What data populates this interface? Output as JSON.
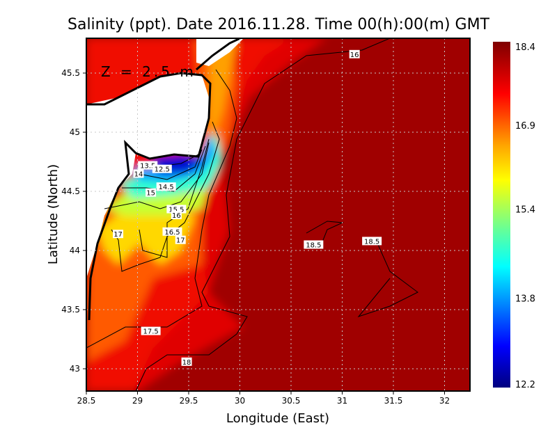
{
  "chart_data": {
    "type": "heatmap",
    "title": "Salinity (ppt). Date 2016.11.28. Time 00(h):00(m) GMT",
    "annotation": "Z = 2.5 m",
    "xlabel": "Longitude (East)",
    "ylabel": "Latitude (North)",
    "xlim": [
      28.5,
      32.25
    ],
    "ylim": [
      42.8,
      45.8
    ],
    "xticks": [
      "28.5",
      "29",
      "29.5",
      "30",
      "30.5",
      "31",
      "31.5",
      "32"
    ],
    "yticks": [
      "43",
      "43.5",
      "44",
      "44.5",
      "45",
      "45.5"
    ],
    "grid": true,
    "colorbar": {
      "min": 12.2,
      "max": 18.4,
      "ticks": [
        "12.2",
        "13.8",
        "15.4",
        "16.9",
        "18.4"
      ],
      "colormap": "jet",
      "placement": "right"
    },
    "contour_labels": [
      {
        "text": "16",
        "lon": 31.12,
        "lat": 45.66
      },
      {
        "text": "13.5",
        "lon": 29.1,
        "lat": 44.72
      },
      {
        "text": "12.5",
        "lon": 29.24,
        "lat": 44.69
      },
      {
        "text": "14",
        "lon": 29.01,
        "lat": 44.65
      },
      {
        "text": "14.5",
        "lon": 29.28,
        "lat": 44.54
      },
      {
        "text": "15",
        "lon": 29.13,
        "lat": 44.49
      },
      {
        "text": "15.5",
        "lon": 29.38,
        "lat": 44.35
      },
      {
        "text": "16",
        "lon": 29.38,
        "lat": 44.3
      },
      {
        "text": "16.5",
        "lon": 29.34,
        "lat": 44.16
      },
      {
        "text": "17",
        "lon": 29.42,
        "lat": 44.09
      },
      {
        "text": "17",
        "lon": 28.81,
        "lat": 44.14
      },
      {
        "text": "18.5",
        "lon": 30.72,
        "lat": 44.05
      },
      {
        "text": "18.5",
        "lon": 31.29,
        "lat": 44.08
      },
      {
        "text": "17.5",
        "lon": 29.13,
        "lat": 43.32
      },
      {
        "text": "18",
        "lon": 29.48,
        "lat": 43.06
      }
    ]
  }
}
